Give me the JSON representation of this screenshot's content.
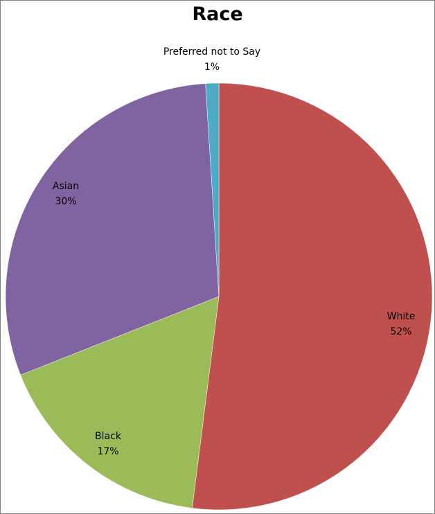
{
  "chart_data": {
    "type": "pie",
    "title": "Race",
    "slices": [
      {
        "label": "White",
        "value": 52,
        "value_label": "52%",
        "color": "#c0504d"
      },
      {
        "label": "Black",
        "value": 17,
        "value_label": "17%",
        "color": "#9bbb59"
      },
      {
        "label": "Asian",
        "value": 30,
        "value_label": "30%",
        "color": "#8064a2"
      },
      {
        "label": "Preferred not to Say",
        "value": 1,
        "value_label": "1%",
        "color": "#4bacc6"
      }
    ],
    "start_angle_deg": 0,
    "direction": "clockwise",
    "legend": "none",
    "data_labels": "category name and percentage"
  }
}
